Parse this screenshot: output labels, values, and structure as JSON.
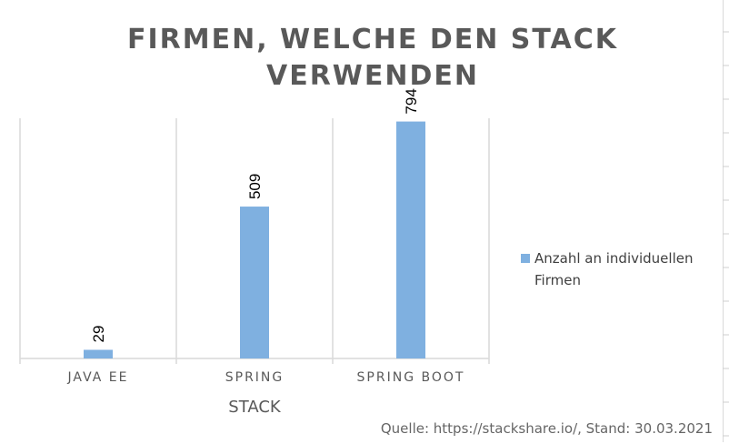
{
  "chart_data": {
    "type": "bar",
    "title": "FIRMEN, WELCHE DEN STACK VERWENDEN",
    "categories": [
      "JAVA EE",
      "SPRING",
      "SPRING BOOT"
    ],
    "series": [
      {
        "name": "Anzahl an individuellen Firmen",
        "values": [
          29,
          509,
          794
        ]
      }
    ],
    "xlabel": "STACK",
    "ylabel": "",
    "ylim": [
      0,
      1000
    ],
    "grid": "vertical category separators",
    "legend_position": "right",
    "bar_color": "#7fb0e0",
    "data_labels_rotated": true
  },
  "source_note": "Quelle: https://stackshare.io/, Stand: 30.03.2021"
}
